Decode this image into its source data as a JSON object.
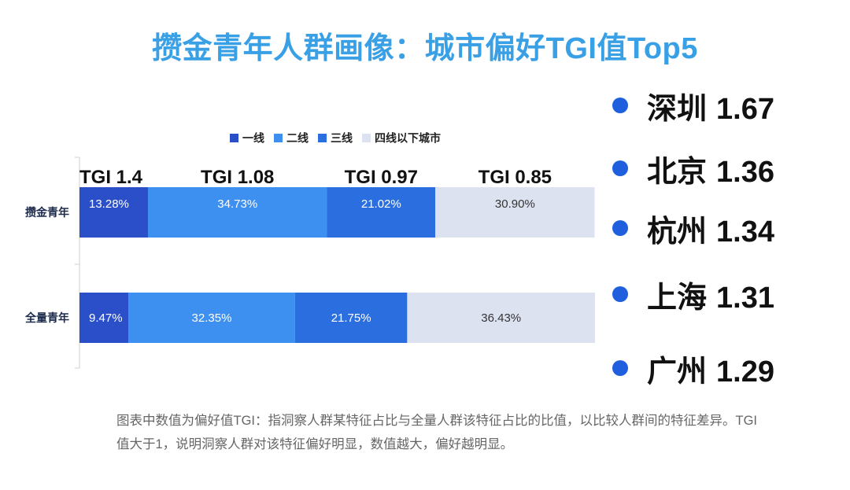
{
  "title": "攒金青年人群画像：城市偏好TGI值Top5",
  "chart_data": {
    "type": "bar",
    "orientation": "horizontal",
    "stacked": true,
    "percent_stacked": true,
    "categories": [
      "攒金青年",
      "全量青年"
    ],
    "series": [
      {
        "name": "一线",
        "values": [
          13.28,
          9.47
        ],
        "labels": [
          "13.28%",
          "9.47%"
        ],
        "color": "#2a4fc9"
      },
      {
        "name": "二线",
        "values": [
          34.73,
          32.35
        ],
        "labels": [
          "34.73%",
          "32.35%"
        ],
        "color": "#3d8ff0"
      },
      {
        "name": "三线",
        "values": [
          21.02,
          21.75
        ],
        "labels": [
          "21.02%",
          "21.75%"
        ],
        "color": "#2b6ee0"
      },
      {
        "name": "四线以下城市",
        "values": [
          30.9,
          36.43
        ],
        "labels": [
          "30.90%",
          "36.43%"
        ],
        "color": "#dde2f0"
      }
    ],
    "tgi_labels": [
      "TGI 1.4",
      "TGI 1.08",
      "TGI 0.97",
      "TGI 0.85"
    ],
    "xlim": [
      0,
      100
    ],
    "legend_position": "top"
  },
  "top_cities": [
    {
      "name": "深圳",
      "value": "1.67"
    },
    {
      "name": "北京",
      "value": "1.36"
    },
    {
      "name": "杭州",
      "value": "1.34"
    },
    {
      "name": "上海",
      "value": "1.31"
    },
    {
      "name": "广州",
      "value": "1.29"
    }
  ],
  "note": "图表中数值为偏好值TGI：指洞察人群某特征占比与全量人群该特征占比的比值，以比较人群间的特征差异。TGI值大于1，说明洞察人群对该特征偏好明显，数值越大，偏好越明显。",
  "colors": {
    "title": "#3aa0e6",
    "dot": "#1f5fde"
  }
}
